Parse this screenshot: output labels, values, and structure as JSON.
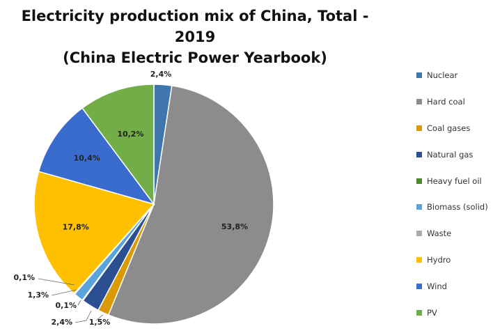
{
  "chart_data": {
    "type": "pie",
    "title": "Electricity production mix of China, Total - 2019",
    "subtitle": "(China Electric Power Yearbook)",
    "legend_position": "right",
    "slices": [
      {
        "name": "Nuclear",
        "value": 2.4,
        "label": "2,4%",
        "color": "#3f76ad"
      },
      {
        "name": "Hard coal",
        "value": 53.8,
        "label": "53,8%",
        "color": "#8c8c8c"
      },
      {
        "name": "Coal gases",
        "value": 1.5,
        "label": "1,5%",
        "color": "#d99a06"
      },
      {
        "name": "Natural gas",
        "value": 2.4,
        "label": "2,4%",
        "color": "#2c4f92"
      },
      {
        "name": "Heavy fuel oil",
        "value": 0.1,
        "label": "0,1%",
        "color": "#4e8a2f"
      },
      {
        "name": "Biomass (solid)",
        "value": 1.3,
        "label": "1,3%",
        "color": "#5ba3db"
      },
      {
        "name": "Waste",
        "value": 0.1,
        "label": "0,1%",
        "color": "#ababab"
      },
      {
        "name": "Hydro",
        "value": 17.8,
        "label": "17,8%",
        "color": "#ffc000"
      },
      {
        "name": "Wind",
        "value": 10.4,
        "label": "10,4%",
        "color": "#3a6ccd"
      },
      {
        "name": "PV",
        "value": 10.2,
        "label": "10,2%",
        "color": "#72ad47"
      }
    ]
  }
}
